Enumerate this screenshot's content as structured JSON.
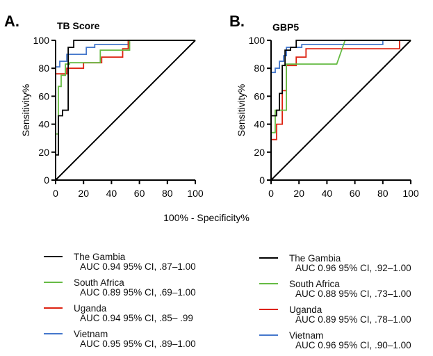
{
  "panels": [
    {
      "letter": "A.",
      "title": "TB Score",
      "legend": [
        {
          "name": "The Gambia",
          "auc": "AUC 0.94 95% CI,  .87–1.00"
        },
        {
          "name": "South Africa",
          "auc": "AUC 0.89 95% CI,  .69–1.00"
        },
        {
          "name": "Uganda",
          "auc": "AUC 0.94 95% CI,  .85– .99"
        },
        {
          "name": "Vietnam",
          "auc": "AUC 0.95 95% CI,  .89–1.00"
        }
      ]
    },
    {
      "letter": "B.",
      "title": "GBP5",
      "legend": [
        {
          "name": "The Gambia",
          "auc": "AUC 0.96 95% CI,  .92–1.00"
        },
        {
          "name": "South Africa",
          "auc": "AUC 0.88 95% CI,  .73–1.00"
        },
        {
          "name": "Uganda",
          "auc": "AUC 0.89 95% CI,  .78–1.00"
        },
        {
          "name": "Vietnam",
          "auc": "AUC 0.96 95% CI,  .90–1.00"
        }
      ]
    }
  ],
  "shared_xlabel": "100% - Specificity%",
  "colors": {
    "The Gambia": "#000000",
    "South Africa": "#66bb44",
    "Uganda": "#dd2211",
    "Vietnam": "#4477cc",
    "reference": "#000000"
  },
  "chart_data": [
    {
      "type": "line",
      "title": "TB Score",
      "xlabel": "",
      "ylabel": "Sensitivity%",
      "xlim": [
        0,
        100
      ],
      "ylim": [
        0,
        100
      ],
      "xticks": [
        0,
        20,
        40,
        60,
        80,
        100
      ],
      "yticks": [
        0,
        20,
        40,
        60,
        80,
        100
      ],
      "grid": false,
      "reference_line": [
        [
          0,
          0
        ],
        [
          100,
          100
        ]
      ],
      "series": [
        {
          "name": "The Gambia",
          "x": [
            0,
            0,
            2,
            2,
            5,
            5,
            9,
            9,
            13,
            13,
            100
          ],
          "y": [
            0,
            18,
            18,
            46,
            46,
            50,
            50,
            95,
            95,
            100,
            100
          ]
        },
        {
          "name": "South Africa",
          "x": [
            0,
            0,
            2,
            2,
            4,
            4,
            7,
            7,
            10,
            10,
            32,
            32,
            53,
            53,
            100
          ],
          "y": [
            0,
            33,
            33,
            67,
            67,
            75,
            75,
            83,
            83,
            84,
            84,
            93,
            93,
            100,
            100
          ]
        },
        {
          "name": "Uganda",
          "x": [
            0,
            0,
            8,
            8,
            20,
            20,
            33,
            33,
            48,
            48,
            52,
            52,
            100
          ],
          "y": [
            0,
            76,
            76,
            80,
            80,
            84,
            84,
            88,
            88,
            94,
            94,
            100,
            100
          ]
        },
        {
          "name": "Vietnam",
          "x": [
            0,
            0,
            3,
            3,
            8,
            8,
            22,
            22,
            28,
            28,
            52,
            52,
            100
          ],
          "y": [
            0,
            81,
            81,
            85,
            85,
            90,
            90,
            95,
            95,
            97,
            97,
            100,
            100
          ]
        }
      ]
    },
    {
      "type": "line",
      "title": "GBP5",
      "xlabel": "",
      "ylabel": "Sensitivity%",
      "xlim": [
        0,
        100
      ],
      "ylim": [
        0,
        100
      ],
      "xticks": [
        0,
        20,
        40,
        60,
        80,
        100
      ],
      "yticks": [
        0,
        20,
        40,
        60,
        80,
        100
      ],
      "grid": false,
      "reference_line": [
        [
          0,
          0
        ],
        [
          100,
          100
        ]
      ],
      "series": [
        {
          "name": "The Gambia",
          "x": [
            0,
            0,
            4,
            4,
            6,
            6,
            8,
            8,
            10,
            10,
            14,
            14,
            18,
            18,
            100
          ],
          "y": [
            0,
            46,
            46,
            50,
            50,
            62,
            62,
            82,
            82,
            93,
            93,
            95,
            95,
            100,
            100
          ]
        },
        {
          "name": "South Africa",
          "x": [
            0,
            0,
            3,
            3,
            6,
            6,
            11,
            11,
            47,
            53,
            53,
            100
          ],
          "y": [
            0,
            34,
            34,
            50,
            50,
            50,
            50,
            83,
            83,
            100,
            100,
            100
          ]
        },
        {
          "name": "Uganda",
          "x": [
            0,
            0,
            4,
            4,
            8,
            8,
            11,
            11,
            18,
            18,
            25,
            25,
            92,
            92,
            100
          ],
          "y": [
            0,
            29,
            29,
            40,
            40,
            64,
            64,
            82,
            82,
            88,
            88,
            94,
            94,
            100,
            100
          ]
        },
        {
          "name": "Vietnam",
          "x": [
            0,
            0,
            3,
            3,
            6,
            6,
            9,
            9,
            11,
            11,
            22,
            22,
            80,
            80,
            100
          ],
          "y": [
            0,
            77,
            77,
            80,
            80,
            85,
            85,
            89,
            89,
            95,
            95,
            97,
            97,
            100,
            100
          ]
        }
      ]
    }
  ]
}
